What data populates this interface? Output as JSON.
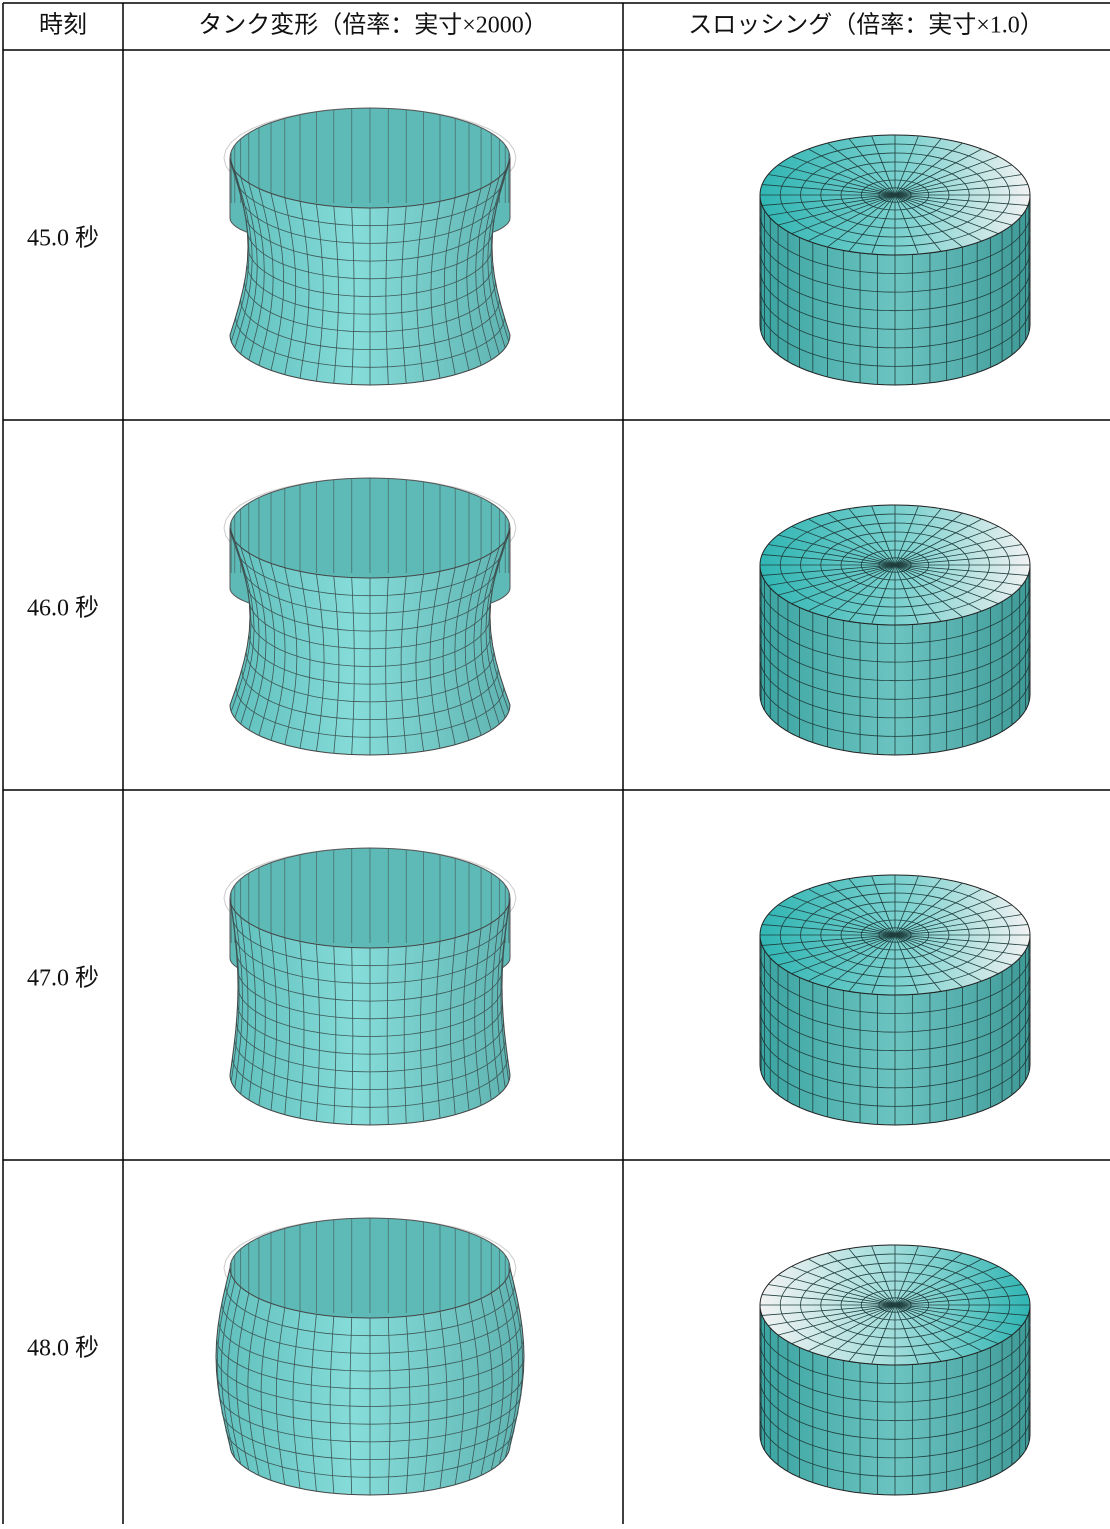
{
  "table": {
    "header": [
      "時刻",
      "タンク変形（倍率：実寸×2000）",
      "スロッシング（倍率：実寸×1.0）"
    ],
    "rows": [
      {
        "time": "45.0 秒"
      },
      {
        "time": "46.0 秒"
      },
      {
        "time": "47.0 秒"
      },
      {
        "time": "48.0 秒"
      }
    ]
  }
}
